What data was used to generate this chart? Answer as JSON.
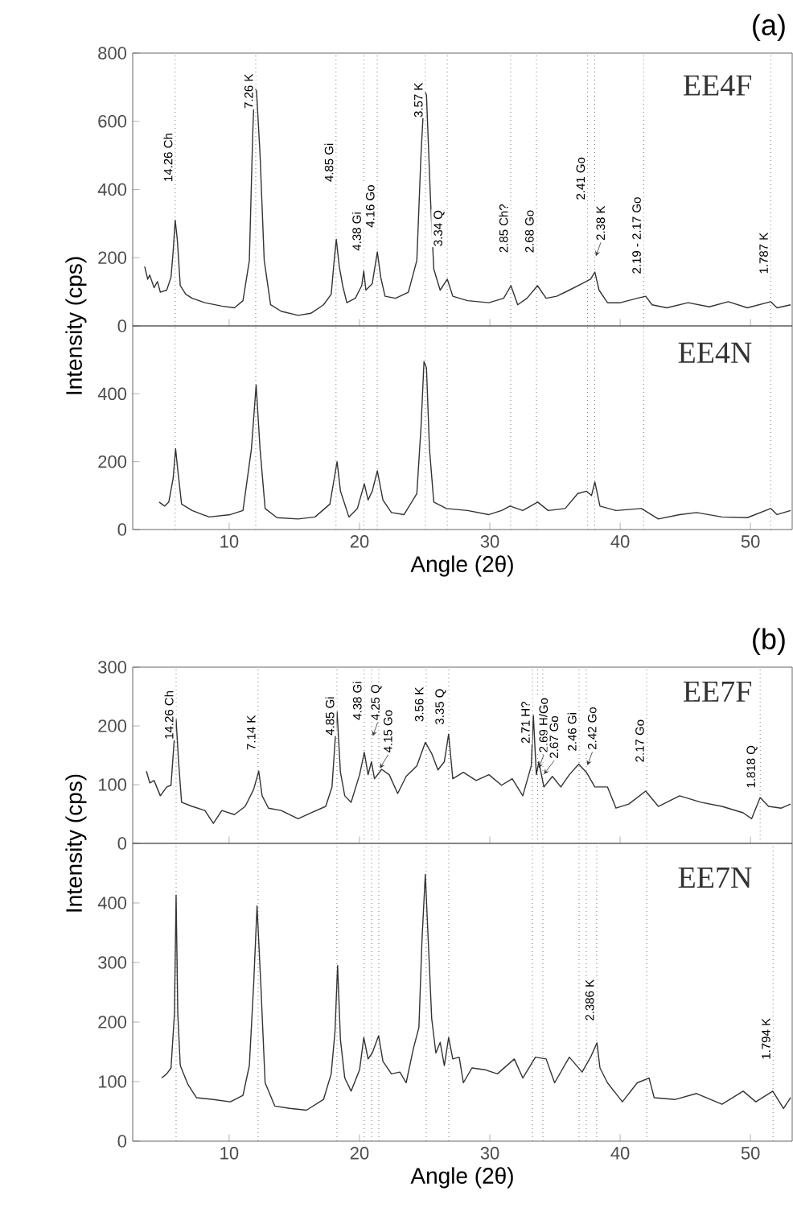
{
  "chart_data": [
    {
      "type": "line",
      "title": "(a)",
      "ylabel": "Intensity (cps)",
      "marker": "none",
      "tick_labels": "y",
      "xlim": [
        2.6,
        53.2
      ],
      "ylim": [
        0,
        800
      ],
      "xticks": [
        10,
        20,
        30,
        40,
        50
      ],
      "yticks": [
        0,
        200,
        400,
        600,
        800
      ],
      "series": [
        {
          "name": "EE4F",
          "color": "#333333",
          "x": [
            3.52,
            3.75,
            3.91,
            4.24,
            4.5,
            4.72,
            5.21,
            5.54,
            5.7,
            5.86,
            6.02,
            6.25,
            6.67,
            7.16,
            8.14,
            9.44,
            10.41,
            11.06,
            11.55,
            11.81,
            11.94,
            12.1,
            12.37,
            12.69,
            13.18,
            13.99,
            15.29,
            16.27,
            17.24,
            17.83,
            18.06,
            18.22,
            18.45,
            18.71,
            19.03,
            19.68,
            20.17,
            20.33,
            20.49,
            20.98,
            21.37,
            21.63,
            21.96,
            22.77,
            23.75,
            24.4,
            24.72,
            24.98,
            25.14,
            25.44,
            25.7,
            26.19,
            26.74,
            27.16,
            28.3,
            29.93,
            31.06,
            31.62,
            32.14,
            32.85,
            33.66,
            34.32,
            35.13,
            36.1,
            37.08,
            37.73,
            38.06,
            38.38,
            39.03,
            40.01,
            41.31,
            41.96,
            42.45,
            43.58,
            45.21,
            46.84,
            48.3,
            49.76,
            51.55,
            52.04,
            53.08
          ],
          "values": [
            174,
            137,
            149,
            112,
            130,
            99,
            105,
            143,
            217,
            310,
            254,
            118,
            93,
            81,
            68,
            58,
            53,
            74,
            192,
            565,
            696,
            689,
            503,
            192,
            62,
            43,
            31,
            37,
            62,
            93,
            192,
            254,
            174,
            118,
            68,
            81,
            118,
            161,
            105,
            124,
            217,
            143,
            87,
            81,
            99,
            192,
            503,
            689,
            677,
            379,
            167,
            105,
            137,
            87,
            74,
            68,
            81,
            118,
            62,
            81,
            118,
            81,
            87,
            105,
            124,
            137,
            158,
            105,
            68,
            68,
            81,
            87,
            62,
            53,
            68,
            56,
            71,
            53,
            71,
            53,
            62
          ]
        }
      ],
      "ref_lines": [
        {
          "axis": "x",
          "value": 5.86,
          "color": "#777777",
          "line_style": "dotted"
        },
        {
          "axis": "x",
          "value": 12.04,
          "color": "#777777",
          "line_style": "dotted"
        },
        {
          "axis": "x",
          "value": 18.2,
          "color": "#777777",
          "line_style": "dotted"
        },
        {
          "axis": "x",
          "value": 20.33,
          "color": "#777777",
          "line_style": "dotted"
        },
        {
          "axis": "x",
          "value": 21.36,
          "color": "#777777",
          "line_style": "dotted"
        },
        {
          "axis": "x",
          "value": 25.06,
          "color": "#777777",
          "line_style": "dotted"
        },
        {
          "axis": "x",
          "value": 26.73,
          "color": "#777777",
          "line_style": "dotted"
        },
        {
          "axis": "x",
          "value": 31.6,
          "color": "#777777",
          "line_style": "dotted"
        },
        {
          "axis": "x",
          "value": 33.58,
          "color": "#777777",
          "line_style": "dotted"
        },
        {
          "axis": "x",
          "value": 37.5,
          "color": "#777777",
          "line_style": "dotted"
        },
        {
          "axis": "x",
          "value": 38.05,
          "color": "#777777",
          "line_style": "dotted"
        },
        {
          "axis": "x",
          "value": 41.8,
          "color": "#777777",
          "line_style": "dotted"
        },
        {
          "axis": "x",
          "value": 51.55,
          "color": "#777777",
          "line_style": "dotted"
        }
      ],
      "annotations": [
        {
          "text": "14.26 Ch",
          "x": 5.86,
          "y": 419
        },
        {
          "text": "7.26 K",
          "x": 12.04,
          "y": 634
        },
        {
          "text": "4.85 Gi",
          "x": 18.2,
          "y": 419
        },
        {
          "text": "4.38 Gi",
          "x": 20.33,
          "y": 217
        },
        {
          "text": "4.16 Go",
          "x": 21.36,
          "y": 285
        },
        {
          "text": "3.57 K",
          "x": 25.06,
          "y": 608
        },
        {
          "text": "3.34 Q",
          "x": 26.73,
          "y": 230
        },
        {
          "text": "2.85 Ch?",
          "x": 31.6,
          "y": 211
        },
        {
          "text": "2.68 Go",
          "x": 33.58,
          "y": 211
        },
        {
          "text": "2.41 Go",
          "x": 37.5,
          "y": 366
        },
        {
          "text": "2.38 K",
          "x": 38.05,
          "y": 200
        },
        {
          "text": "2.19 - 2.17 Go",
          "x": 41.8,
          "y": 149
        },
        {
          "text": "1.787 K",
          "x": 51.55,
          "y": 149
        }
      ]
    },
    {
      "type": "line",
      "xlabel": "Angle (2θ)",
      "marker": "none",
      "xlim": [
        2.6,
        53.2
      ],
      "ylim": [
        0,
        600
      ],
      "xticks": [
        10,
        20,
        30,
        40,
        50
      ],
      "yticks": [
        0,
        200,
        400
      ],
      "series": [
        {
          "name": "EE4N",
          "color": "#333333",
          "x": [
            4.63,
            5.05,
            5.37,
            5.7,
            5.89,
            6.06,
            6.35,
            7.16,
            8.46,
            10.09,
            11.06,
            11.71,
            12.07,
            12.37,
            12.76,
            13.67,
            15.29,
            16.59,
            17.73,
            18.06,
            18.28,
            18.54,
            19.19,
            19.84,
            20.37,
            20.66,
            20.98,
            21.37,
            21.8,
            22.45,
            23.42,
            24.4,
            24.72,
            24.95,
            25.14,
            25.37,
            25.7,
            26.67,
            28.3,
            29.93,
            30.9,
            31.55,
            32.53,
            33.67,
            34.48,
            35.78,
            36.75,
            37.41,
            37.8,
            38.06,
            38.45,
            39.68,
            41.63,
            42.93,
            44.56,
            45.86,
            47.81,
            49.76,
            51.55,
            52.04,
            53.08
          ],
          "values": [
            81,
            69,
            81,
            150,
            238,
            175,
            75,
            56,
            37,
            44,
            56,
            238,
            426,
            238,
            62,
            35,
            31,
            37,
            75,
            150,
            200,
            113,
            37,
            62,
            135,
            87,
            113,
            173,
            87,
            50,
            44,
            106,
            301,
            495,
            476,
            238,
            81,
            62,
            56,
            44,
            56,
            69,
            56,
            81,
            56,
            62,
            106,
            113,
            100,
            140,
            69,
            56,
            62,
            31,
            44,
            50,
            37,
            35,
            62,
            44,
            56
          ]
        }
      ],
      "ref_lines": [
        {
          "axis": "x",
          "value": 5.86,
          "color": "#777777",
          "line_style": "dotted"
        },
        {
          "axis": "x",
          "value": 12.04,
          "color": "#777777",
          "line_style": "dotted"
        },
        {
          "axis": "x",
          "value": 18.2,
          "color": "#777777",
          "line_style": "dotted"
        },
        {
          "axis": "x",
          "value": 20.33,
          "color": "#777777",
          "line_style": "dotted"
        },
        {
          "axis": "x",
          "value": 21.36,
          "color": "#777777",
          "line_style": "dotted"
        },
        {
          "axis": "x",
          "value": 25.06,
          "color": "#777777",
          "line_style": "dotted"
        },
        {
          "axis": "x",
          "value": 26.73,
          "color": "#777777",
          "line_style": "dotted"
        },
        {
          "axis": "x",
          "value": 31.6,
          "color": "#777777",
          "line_style": "dotted"
        },
        {
          "axis": "x",
          "value": 33.58,
          "color": "#777777",
          "line_style": "dotted"
        },
        {
          "axis": "x",
          "value": 37.5,
          "color": "#777777",
          "line_style": "dotted"
        },
        {
          "axis": "x",
          "value": 38.05,
          "color": "#777777",
          "line_style": "dotted"
        },
        {
          "axis": "x",
          "value": 41.8,
          "color": "#777777",
          "line_style": "dotted"
        },
        {
          "axis": "x",
          "value": 51.55,
          "color": "#777777",
          "line_style": "dotted"
        }
      ]
    },
    {
      "type": "line",
      "title": "(b)",
      "ylabel": "Intensity (cps)",
      "marker": "none",
      "tick_labels": "y",
      "xlim": [
        2.6,
        53.2
      ],
      "ylim": [
        0,
        300
      ],
      "xticks": [
        10,
        20,
        30,
        40,
        50
      ],
      "yticks": [
        0,
        100,
        200,
        300
      ],
      "series": [
        {
          "name": "EE7F",
          "color": "#333333",
          "x": [
            3.65,
            3.91,
            4.24,
            4.72,
            5.21,
            5.54,
            5.76,
            5.93,
            6.12,
            6.35,
            7.16,
            8.14,
            8.79,
            9.44,
            10.41,
            11.23,
            11.88,
            12.27,
            12.53,
            13.02,
            13.99,
            15.29,
            16.27,
            17.41,
            17.89,
            18.28,
            18.54,
            18.87,
            19.36,
            20.01,
            20.37,
            20.66,
            20.92,
            21.15,
            21.7,
            22.28,
            22.93,
            23.58,
            24.4,
            25.05,
            25.54,
            26.02,
            26.51,
            26.84,
            27.16,
            27.97,
            28.95,
            29.93,
            30.9,
            31.72,
            32.53,
            33.18,
            33.34,
            33.57,
            33.76,
            34.15,
            34.8,
            35.45,
            36.1,
            36.82,
            37.41,
            38.06,
            39.03,
            39.68,
            40.66,
            41.96,
            42.93,
            44.56,
            46.19,
            47.81,
            49.44,
            50.09,
            50.74,
            51.39,
            52.37,
            53.08
          ],
          "values": [
            123,
            103,
            107,
            81,
            96,
            99,
            168,
            211,
            139,
            70,
            63,
            56,
            34,
            56,
            49,
            63,
            92,
            123,
            81,
            60,
            56,
            42,
            52,
            63,
            96,
            224,
            121,
            81,
            70,
            117,
            155,
            117,
            139,
            110,
            126,
            117,
            85,
            114,
            132,
            172,
            153,
            125,
            139,
            186,
            110,
            121,
            107,
            117,
            99,
            110,
            81,
            132,
            218,
            117,
            139,
            96,
            114,
            96,
            117,
            135,
            121,
            96,
            96,
            60,
            67,
            89,
            63,
            81,
            70,
            63,
            52,
            42,
            78,
            63,
            60,
            67
          ]
        }
      ],
      "ref_lines": [
        {
          "axis": "x",
          "value": 5.93,
          "color": "#777777",
          "line_style": "dotted"
        },
        {
          "axis": "x",
          "value": 12.22,
          "color": "#777777",
          "line_style": "dotted"
        },
        {
          "axis": "x",
          "value": 18.27,
          "color": "#777777",
          "line_style": "dotted"
        },
        {
          "axis": "x",
          "value": 20.37,
          "color": "#777777",
          "line_style": "dotted"
        },
        {
          "axis": "x",
          "value": 20.93,
          "color": "#777777",
          "line_style": "dotted"
        },
        {
          "axis": "x",
          "value": 21.48,
          "color": "#777777",
          "line_style": "dotted"
        },
        {
          "axis": "x",
          "value": 25.12,
          "color": "#777777",
          "line_style": "dotted"
        },
        {
          "axis": "x",
          "value": 26.85,
          "color": "#777777",
          "line_style": "dotted"
        },
        {
          "axis": "x",
          "value": 33.27,
          "color": "#777777",
          "line_style": "dotted"
        },
        {
          "axis": "x",
          "value": 33.67,
          "color": "#777777",
          "line_style": "dotted"
        },
        {
          "axis": "x",
          "value": 34.07,
          "color": "#777777",
          "line_style": "dotted"
        },
        {
          "axis": "x",
          "value": 36.85,
          "color": "#777777",
          "line_style": "dotted"
        },
        {
          "axis": "x",
          "value": 37.4,
          "color": "#777777",
          "line_style": "dotted"
        },
        {
          "axis": "x",
          "value": 42.04,
          "color": "#777777",
          "line_style": "dotted"
        },
        {
          "axis": "x",
          "value": 50.74,
          "color": "#777777",
          "line_style": "dotted"
        }
      ],
      "annotations": [
        {
          "text": "14.26 Ch",
          "x": 5.93,
          "y": 175
        },
        {
          "text": "7.14 K",
          "x": 12.22,
          "y": 157
        },
        {
          "text": "4.85 Gi",
          "x": 18.27,
          "y": 182
        },
        {
          "text": "4.38 Gi",
          "x": 20.37,
          "y": 208
        },
        {
          "text": "4.25 Q",
          "x": 20.93,
          "y": 180
        },
        {
          "text": "4.15 Go",
          "x": 21.48,
          "y": 125
        },
        {
          "text": "3.56 K",
          "x": 25.12,
          "y": 205
        },
        {
          "text": "3.35 Q",
          "x": 26.85,
          "y": 200
        },
        {
          "text": "2.71 H?",
          "x": 33.27,
          "y": 168
        },
        {
          "text": "2.69 H/Go",
          "x": 33.67,
          "y": 125
        },
        {
          "text": "2.67 Go",
          "x": 34.07,
          "y": 115
        },
        {
          "text": "2.46 Gi",
          "x": 36.85,
          "y": 155
        },
        {
          "text": "2.42 Go",
          "x": 37.4,
          "y": 130
        },
        {
          "text": "2.17 Go",
          "x": 42.04,
          "y": 136
        },
        {
          "text": "1.818 Q",
          "x": 50.74,
          "y": 92
        }
      ]
    },
    {
      "type": "line",
      "xlabel": "Angle (2θ)",
      "marker": "none",
      "xlim": [
        2.6,
        53.2
      ],
      "ylim": [
        0,
        500
      ],
      "xticks": [
        10,
        20,
        30,
        40,
        50
      ],
      "yticks": [
        0,
        100,
        200,
        300,
        400
      ],
      "series": [
        {
          "name": "EE7N",
          "color": "#333333",
          "x": [
            4.82,
            5.21,
            5.54,
            5.8,
            5.93,
            6.06,
            6.25,
            6.84,
            7.49,
            8.79,
            10.09,
            11.06,
            11.55,
            11.88,
            12.14,
            12.43,
            12.76,
            13.5,
            14.64,
            15.94,
            17.24,
            17.83,
            18.12,
            18.32,
            18.54,
            18.87,
            19.36,
            20.01,
            20.33,
            20.66,
            20.98,
            21.47,
            21.8,
            22.45,
            23.1,
            23.58,
            24.14,
            24.56,
            24.79,
            25.05,
            25.28,
            25.54,
            25.86,
            26.19,
            26.51,
            26.84,
            27.16,
            27.65,
            27.97,
            28.63,
            29.6,
            30.58,
            31.88,
            32.53,
            33.5,
            34.32,
            34.97,
            36.1,
            37.08,
            37.73,
            38.22,
            38.45,
            39.03,
            40.17,
            41.31,
            42.22,
            42.61,
            44.24,
            45.86,
            47.81,
            49.44,
            50.41,
            51.71,
            52.53,
            53.08
          ],
          "values": [
            106,
            113,
            123,
            213,
            413,
            213,
            127,
            95,
            73,
            70,
            66,
            77,
            127,
            263,
            395,
            263,
            98,
            59,
            55,
            52,
            70,
            113,
            184,
            295,
            170,
            106,
            84,
            120,
            174,
            138,
            148,
            177,
            134,
            113,
            116,
            98,
            156,
            191,
            335,
            448,
            335,
            206,
            148,
            166,
            127,
            174,
            138,
            141,
            98,
            123,
            120,
            113,
            138,
            106,
            141,
            138,
            98,
            141,
            116,
            141,
            165,
            123,
            98,
            66,
            98,
            106,
            73,
            70,
            80,
            62,
            84,
            66,
            84,
            55,
            73
          ]
        }
      ],
      "ref_lines": [
        {
          "axis": "x",
          "value": 5.93,
          "color": "#777777",
          "line_style": "dotted"
        },
        {
          "axis": "x",
          "value": 12.22,
          "color": "#777777",
          "line_style": "dotted"
        },
        {
          "axis": "x",
          "value": 18.27,
          "color": "#777777",
          "line_style": "dotted"
        },
        {
          "axis": "x",
          "value": 20.37,
          "color": "#777777",
          "line_style": "dotted"
        },
        {
          "axis": "x",
          "value": 20.93,
          "color": "#777777",
          "line_style": "dotted"
        },
        {
          "axis": "x",
          "value": 21.48,
          "color": "#777777",
          "line_style": "dotted"
        },
        {
          "axis": "x",
          "value": 25.12,
          "color": "#777777",
          "line_style": "dotted"
        },
        {
          "axis": "x",
          "value": 26.85,
          "color": "#777777",
          "line_style": "dotted"
        },
        {
          "axis": "x",
          "value": 33.27,
          "color": "#777777",
          "line_style": "dotted"
        },
        {
          "axis": "x",
          "value": 34.07,
          "color": "#777777",
          "line_style": "dotted"
        },
        {
          "axis": "x",
          "value": 36.85,
          "color": "#777777",
          "line_style": "dotted"
        },
        {
          "axis": "x",
          "value": 37.4,
          "color": "#777777",
          "line_style": "dotted"
        },
        {
          "axis": "x",
          "value": 38.2,
          "color": "#777777",
          "line_style": "dotted"
        },
        {
          "axis": "x",
          "value": 42.04,
          "color": "#777777",
          "line_style": "dotted"
        },
        {
          "axis": "x",
          "value": 51.73,
          "color": "#777777",
          "line_style": "dotted"
        }
      ],
      "annotations": [
        {
          "text": "2.386 K",
          "x": 38.2,
          "y": 200
        },
        {
          "text": "1.794 K",
          "x": 51.73,
          "y": 135
        }
      ]
    }
  ]
}
